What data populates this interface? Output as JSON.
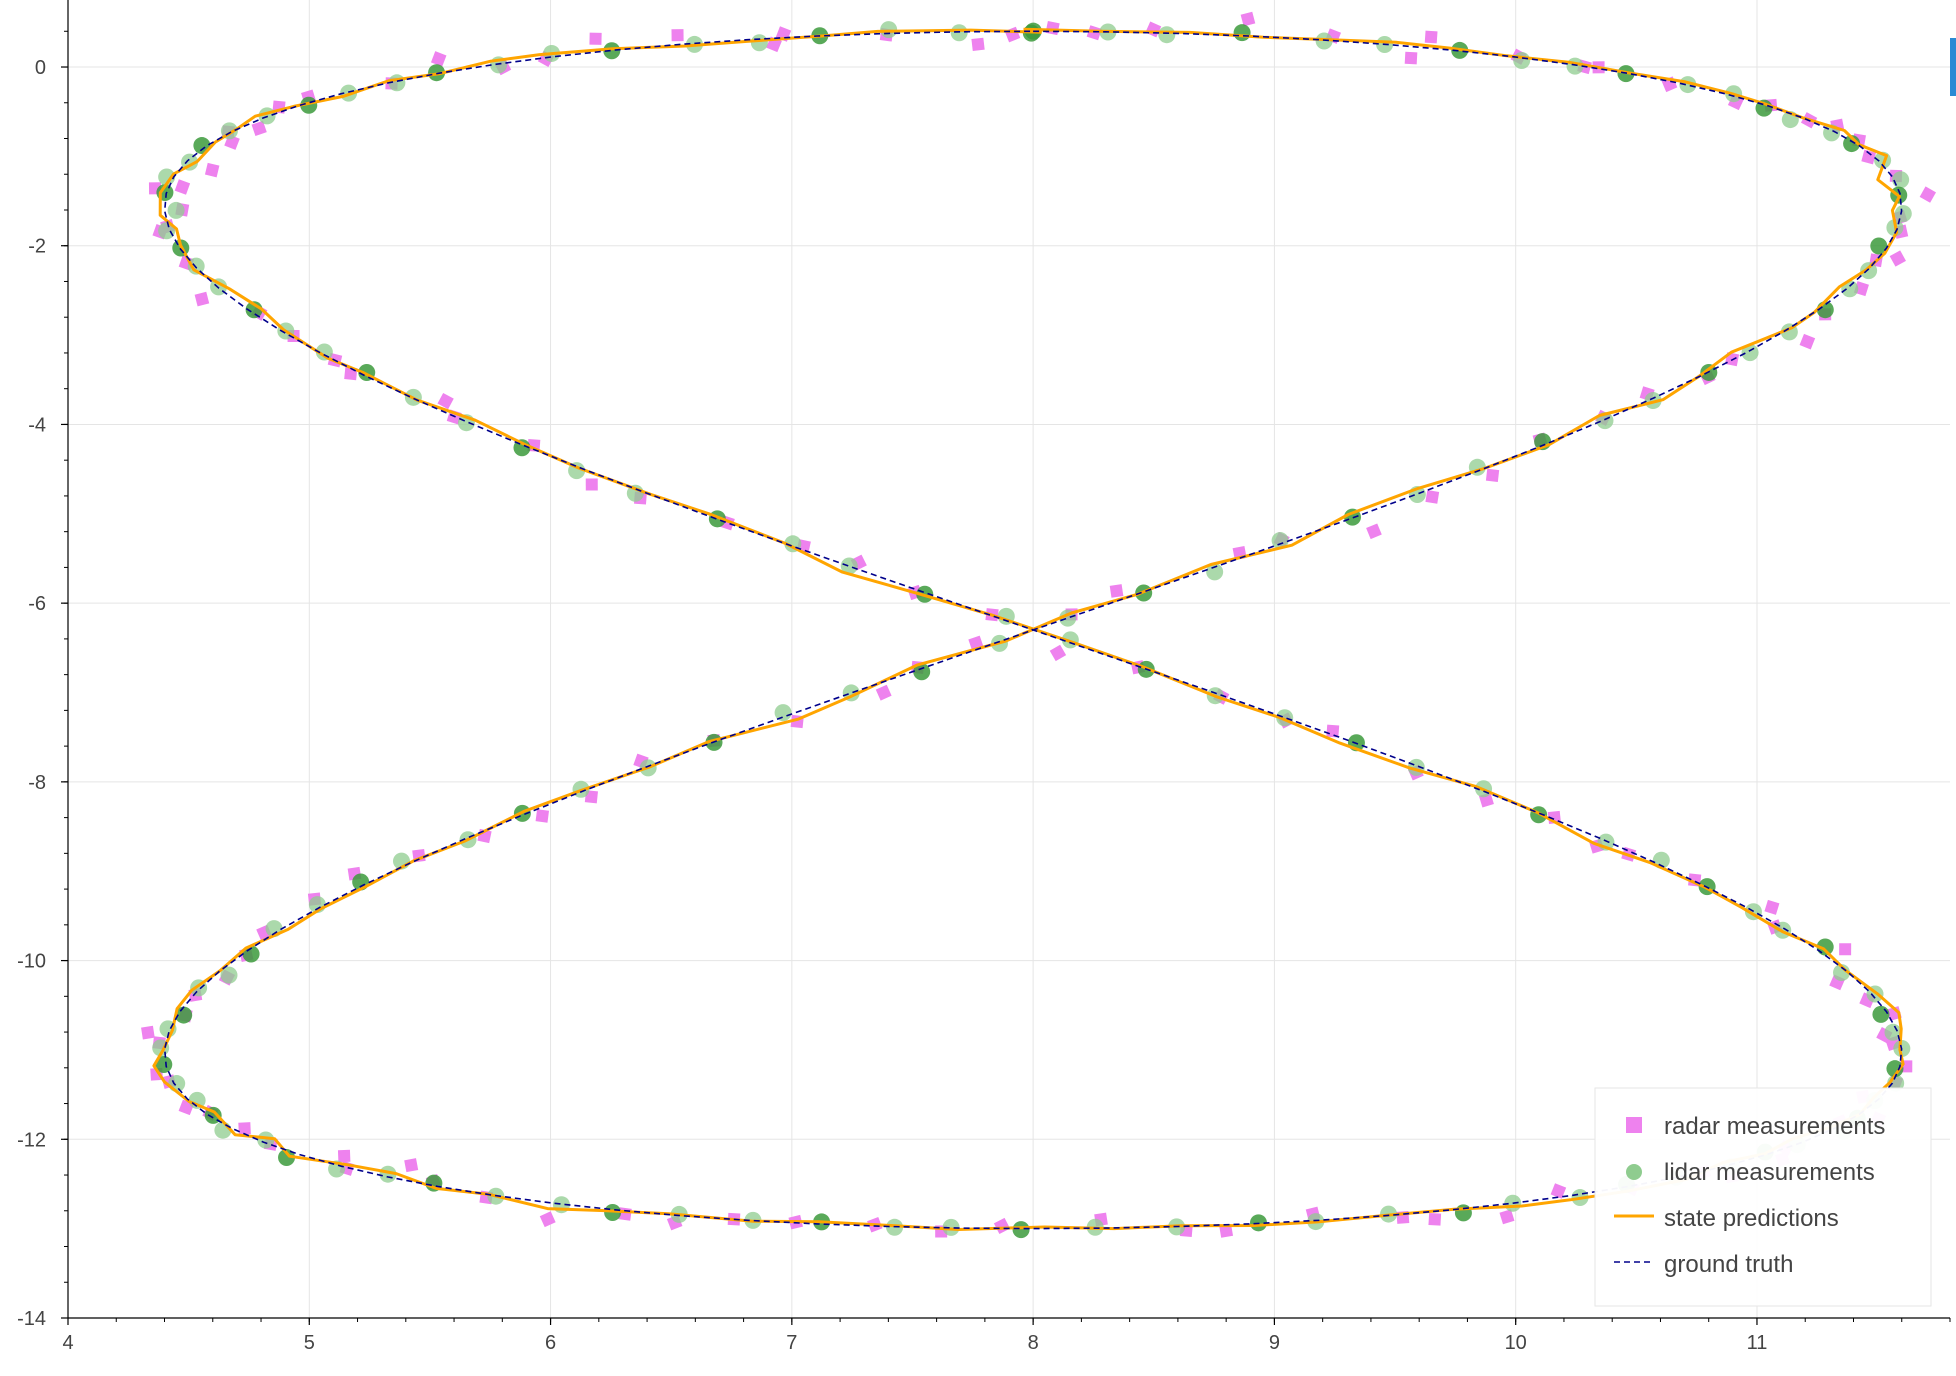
{
  "chart_data": {
    "type": "scatter",
    "title": "",
    "xlabel": "",
    "ylabel": "",
    "xlim": [
      4.0,
      11.8
    ],
    "ylim": [
      -14.0,
      0.75
    ],
    "xticks": [
      4,
      5,
      6,
      7,
      8,
      9,
      10,
      11
    ],
    "yticks": [
      0,
      -2,
      -4,
      -6,
      -8,
      -10,
      -12,
      -14
    ],
    "x_minor_step": 0.2,
    "y_minor_step": 0.4,
    "grid": true,
    "legend_position": "bottom-right",
    "colors": {
      "radar": "#ee82ee",
      "lidar": "#8fcc8f",
      "prediction": "#ffa500",
      "truth": "#00008b",
      "grid": "#e5e5e5",
      "axis": "#000000"
    },
    "legend": [
      {
        "label": "radar measurements",
        "style": "square"
      },
      {
        "label": "lidar measurements",
        "style": "circle"
      },
      {
        "label": "state predictions",
        "style": "line"
      },
      {
        "label": "ground truth",
        "style": "dashed"
      }
    ],
    "trajectory": {
      "shape": "figure-eight (lemniscate)",
      "center": [
        8.0,
        -6.3
      ],
      "half_width_x": 3.6,
      "half_height_y": 6.7,
      "points": 150,
      "lidar_noise": 0.04,
      "radar_noise": 0.12,
      "prediction_noise": 0.05,
      "seed": 11
    }
  },
  "toolbar": {
    "accent": "#2a8ad4"
  }
}
